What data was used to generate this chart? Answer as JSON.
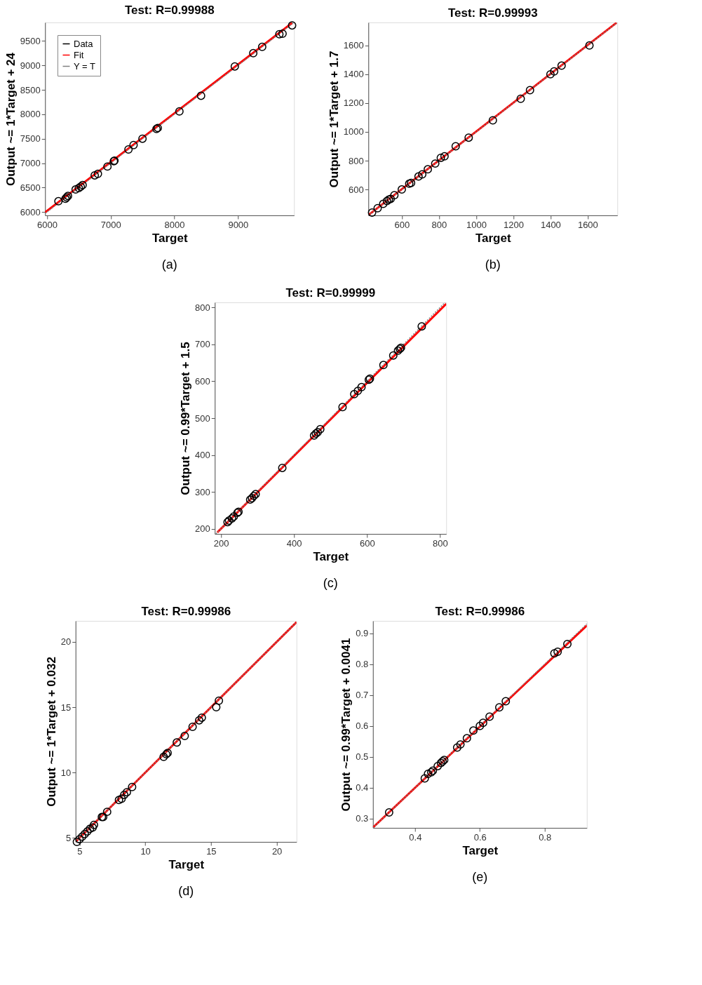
{
  "chart_data": [
    {
      "type": "scatter",
      "title": "Test: R=0.99988",
      "xlabel": "Target",
      "ylabel": "Output ~= 1*Target + 24",
      "annotations": [
        "(a)"
      ],
      "xlim": [
        5970,
        9880
      ],
      "ylim": [
        5930,
        9880
      ],
      "xticks": [
        6000,
        7000,
        8000,
        9000
      ],
      "yticks": [
        6000,
        6500,
        7000,
        7500,
        8000,
        8500,
        9000,
        9500
      ],
      "legend": "top left",
      "grid": false,
      "series": [
        {
          "name": "Data",
          "marker": "circle",
          "color": "#000000",
          "x": [
            6180,
            6290,
            6310,
            6330,
            6450,
            6500,
            6530,
            6560,
            6750,
            6800,
            6950,
            7050,
            7060,
            7280,
            7360,
            7500,
            7720,
            7740,
            8080,
            8420,
            8950,
            9240,
            9380,
            9650,
            9700,
            9850
          ],
          "values": [
            6220,
            6270,
            6300,
            6330,
            6460,
            6490,
            6520,
            6550,
            6750,
            6780,
            6930,
            7040,
            7050,
            7280,
            7370,
            7500,
            7700,
            7720,
            8060,
            8380,
            8980,
            9250,
            9380,
            9640,
            9650,
            9820
          ]
        },
        {
          "name": "Fit",
          "type": "line",
          "line_style": "solid",
          "color": "#ff0000",
          "x": [
            5970,
            9850
          ],
          "values": [
            5990,
            9870
          ]
        },
        {
          "name": "Y = T",
          "type": "line",
          "line_style": "dotted",
          "color": "#808080",
          "x": [
            5970,
            9880
          ],
          "values": [
            5970,
            9880
          ]
        }
      ]
    },
    {
      "type": "scatter",
      "title": "Test: R=0.99993",
      "xlabel": "Target",
      "ylabel": "Output ~= 1*Target + 1.7",
      "annotations": [
        "(b)"
      ],
      "xlim": [
        420,
        1760
      ],
      "ylim": [
        420,
        1760
      ],
      "xticks": [
        600,
        800,
        1000,
        1200,
        1400,
        1600
      ],
      "yticks": [
        600,
        800,
        1000,
        1200,
        1400,
        1600
      ],
      "legend": "top left",
      "grid": false,
      "series": [
        {
          "name": "Data",
          "marker": "circle",
          "color": "#000000",
          "x": [
            440,
            470,
            500,
            520,
            530,
            540,
            560,
            600,
            640,
            650,
            690,
            710,
            740,
            780,
            810,
            830,
            890,
            960,
            1090,
            1240,
            1290,
            1400,
            1420,
            1460,
            1610
          ],
          "values": [
            440,
            470,
            500,
            520,
            530,
            535,
            560,
            600,
            640,
            645,
            690,
            705,
            740,
            780,
            820,
            830,
            900,
            960,
            1080,
            1230,
            1290,
            1400,
            1420,
            1460,
            1600
          ]
        },
        {
          "name": "Fit",
          "type": "line",
          "line_style": "solid",
          "color": "#ff0000",
          "x": [
            420,
            1755
          ],
          "values": [
            422,
            1757
          ]
        },
        {
          "name": "Y = T",
          "type": "line",
          "line_style": "dotted",
          "color": "#808080",
          "x": [
            420,
            1760
          ],
          "values": [
            420,
            1760
          ]
        }
      ]
    },
    {
      "type": "scatter",
      "title": "Test: R=0.99999",
      "xlabel": "Target",
      "ylabel": "Output ~= 0.99*Target + 1.5",
      "annotations": [
        "(c)"
      ],
      "xlim": [
        183,
        817
      ],
      "ylim": [
        186,
        814
      ],
      "xticks": [
        200,
        400,
        600,
        800
      ],
      "yticks": [
        200,
        300,
        400,
        500,
        600,
        700,
        800
      ],
      "legend": "top left",
      "grid": false,
      "series": [
        {
          "name": "Data",
          "marker": "circle",
          "color": "#000000",
          "x": [
            218,
            222,
            230,
            235,
            245,
            248,
            280,
            285,
            290,
            295,
            368,
            455,
            460,
            465,
            472,
            533,
            565,
            575,
            585,
            605,
            608,
            645,
            672,
            685,
            690,
            693,
            750
          ],
          "values": [
            218,
            222,
            228,
            233,
            243,
            246,
            279,
            283,
            289,
            294,
            365,
            453,
            458,
            462,
            470,
            530,
            565,
            574,
            584,
            604,
            607,
            644,
            670,
            683,
            688,
            691,
            749
          ]
        },
        {
          "name": "Fit",
          "type": "line",
          "line_style": "solid",
          "color": "#ff0000",
          "x": [
            190,
            817
          ],
          "values": [
            190,
            810
          ]
        },
        {
          "name": "Y = T",
          "type": "line",
          "line_style": "dotted",
          "color": "#808080",
          "x": [
            186,
            814
          ],
          "values": [
            186,
            814
          ]
        }
      ]
    },
    {
      "type": "scatter",
      "title": "Test: R=0.99986",
      "xlabel": "Target",
      "ylabel": "Output ~= 1*Target + 0.032",
      "annotations": [
        "(d)"
      ],
      "xlim": [
        4.7,
        21.5
      ],
      "ylim": [
        4.7,
        21.6
      ],
      "xticks": [
        5,
        10,
        15,
        20
      ],
      "yticks": [
        5,
        10,
        15,
        20
      ],
      "legend": "top left",
      "grid": false,
      "series": [
        {
          "name": "Data",
          "marker": "circle",
          "color": "#000000",
          "x": [
            4.8,
            5.0,
            5.2,
            5.4,
            5.6,
            5.8,
            6.0,
            6.1,
            6.7,
            6.8,
            7.1,
            8.0,
            8.2,
            8.4,
            8.6,
            9.0,
            11.4,
            11.6,
            11.7,
            12.4,
            13.0,
            13.6,
            14.1,
            14.3,
            15.4,
            15.6
          ],
          "values": [
            4.7,
            4.9,
            5.1,
            5.3,
            5.5,
            5.7,
            5.8,
            6.0,
            6.6,
            6.6,
            7.0,
            7.9,
            8.0,
            8.3,
            8.5,
            8.9,
            11.2,
            11.4,
            11.5,
            12.3,
            12.8,
            13.5,
            14.0,
            14.2,
            15.0,
            15.5
          ]
        },
        {
          "name": "Fit",
          "type": "line",
          "line_style": "solid",
          "color": "#ff0000",
          "x": [
            4.7,
            21.5
          ],
          "values": [
            4.7,
            21.5
          ]
        },
        {
          "name": "Y = T",
          "type": "line",
          "line_style": "dotted",
          "color": "#808080",
          "x": [
            4.7,
            21.5
          ],
          "values": [
            4.7,
            21.5
          ]
        }
      ]
    },
    {
      "type": "scatter",
      "title": "Test: R=0.99986",
      "xlabel": "Target",
      "ylabel": "Output ~= 0.99*Target + 0.0041",
      "annotations": [
        "(e)"
      ],
      "xlim": [
        0.27,
        0.93
      ],
      "ylim": [
        0.27,
        0.94
      ],
      "xticks": [
        0.4,
        0.6,
        0.8
      ],
      "yticks": [
        0.3,
        0.4,
        0.5,
        0.6,
        0.7,
        0.8,
        0.9
      ],
      "legend": "top left",
      "grid": false,
      "series": [
        {
          "name": "Data",
          "marker": "circle",
          "color": "#000000",
          "x": [
            0.32,
            0.43,
            0.44,
            0.45,
            0.455,
            0.47,
            0.48,
            0.485,
            0.49,
            0.53,
            0.54,
            0.56,
            0.58,
            0.6,
            0.61,
            0.63,
            0.66,
            0.68,
            0.83,
            0.84,
            0.87
          ],
          "values": [
            0.32,
            0.43,
            0.445,
            0.45,
            0.455,
            0.47,
            0.48,
            0.485,
            0.49,
            0.53,
            0.54,
            0.56,
            0.585,
            0.6,
            0.61,
            0.63,
            0.66,
            0.68,
            0.835,
            0.84,
            0.865
          ]
        },
        {
          "name": "Fit",
          "type": "line",
          "line_style": "solid",
          "color": "#ff0000",
          "x": [
            0.27,
            0.93
          ],
          "values": [
            0.271,
            0.925
          ]
        },
        {
          "name": "Y = T",
          "type": "line",
          "line_style": "dotted",
          "color": "#808080",
          "x": [
            0.27,
            0.93
          ],
          "values": [
            0.27,
            0.93
          ]
        }
      ]
    }
  ]
}
